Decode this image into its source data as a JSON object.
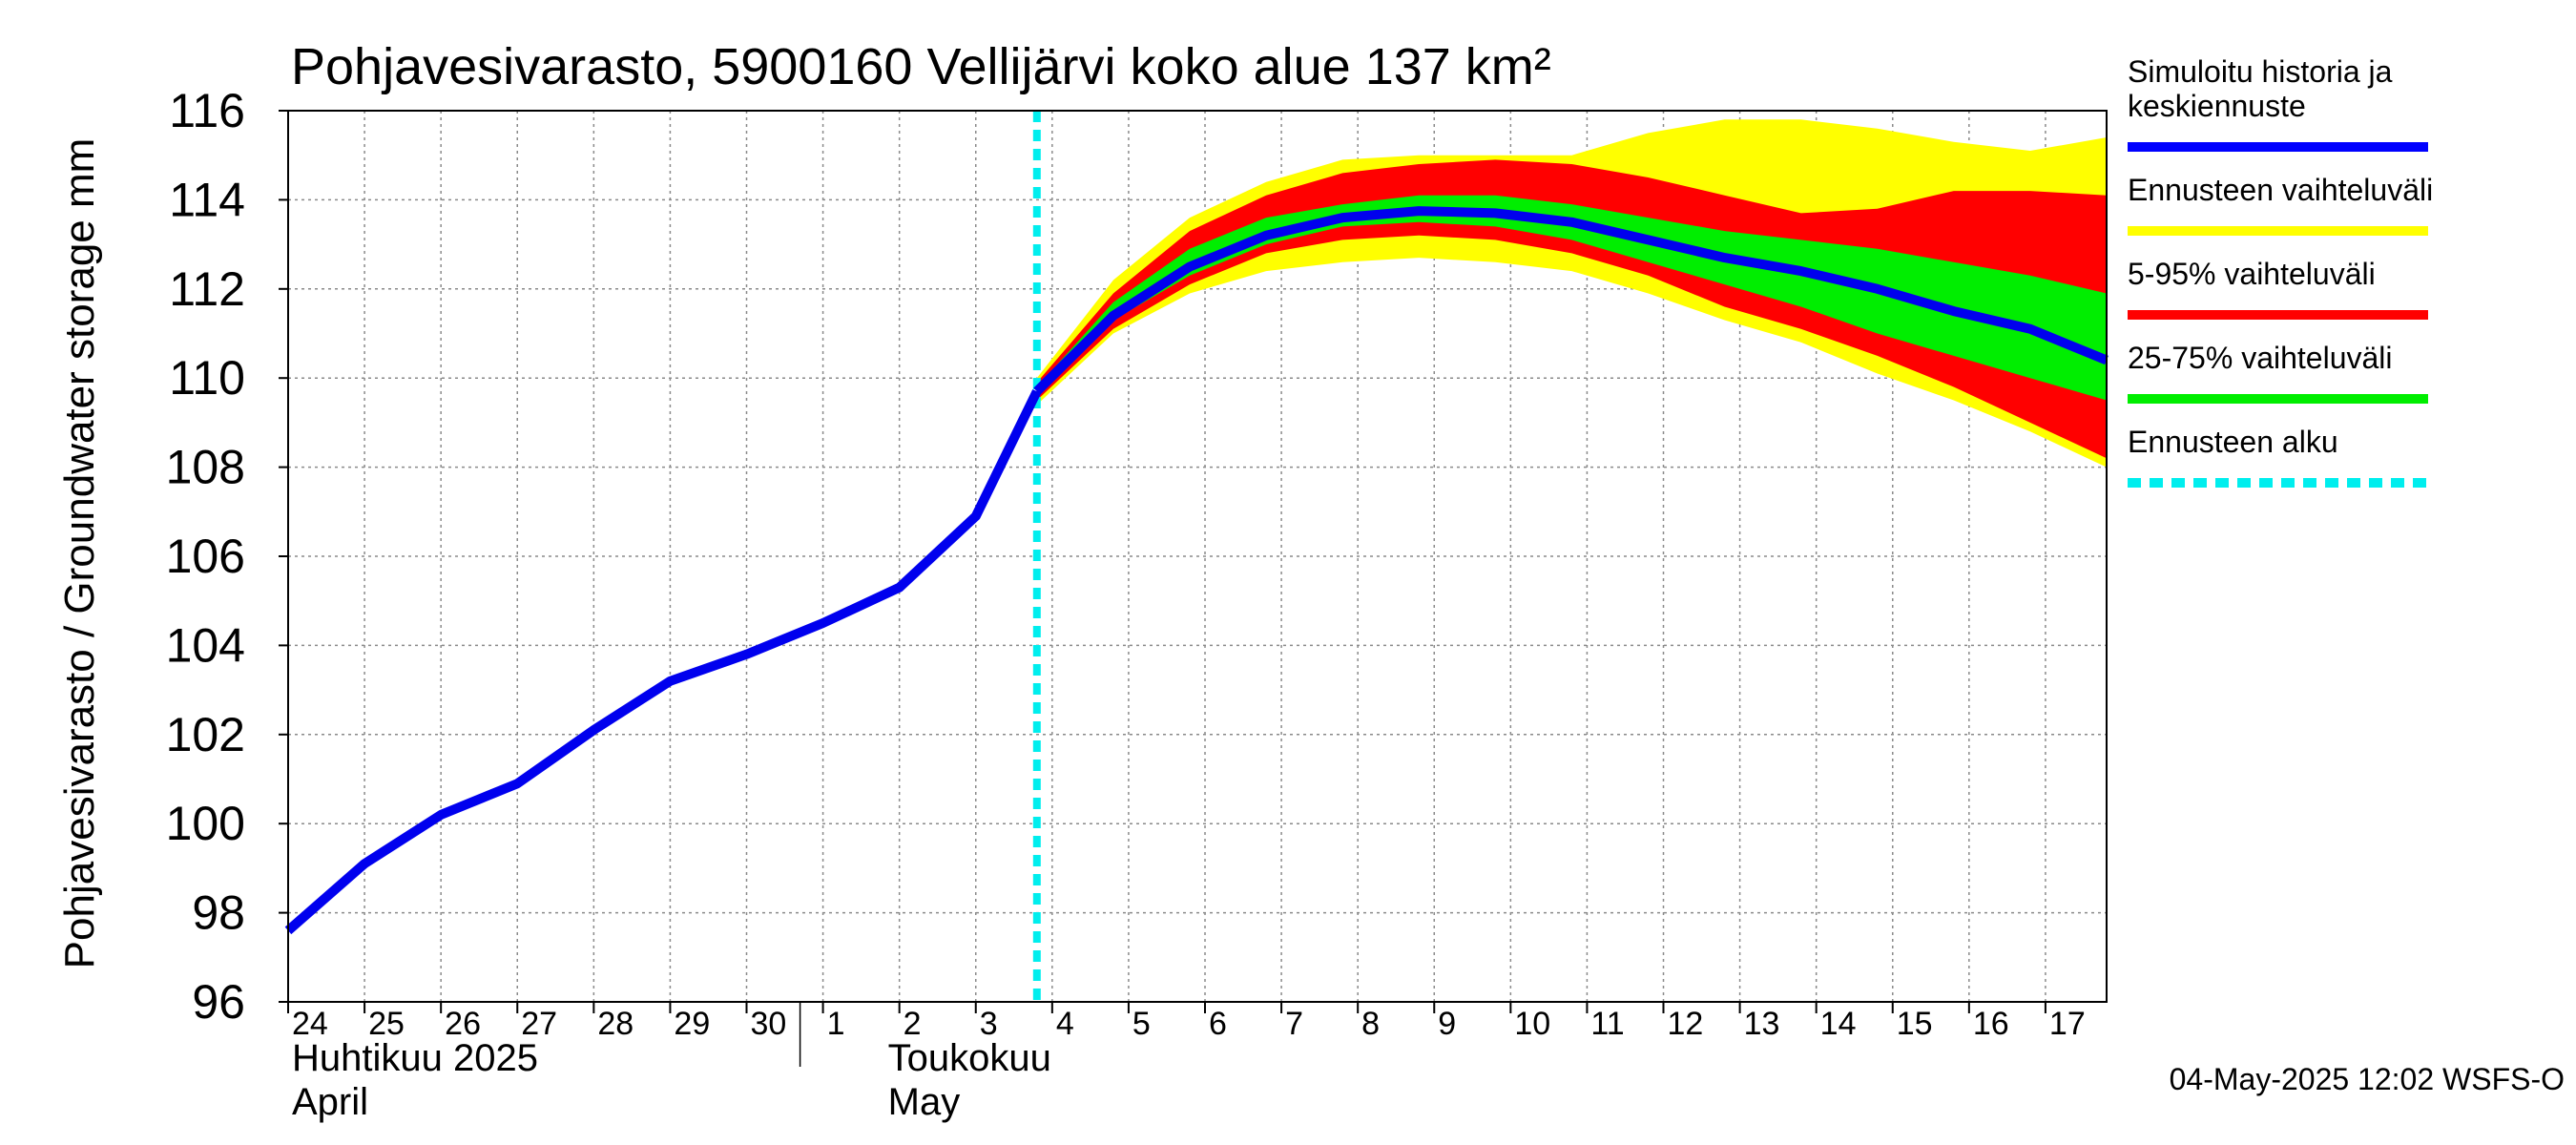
{
  "chart_data": {
    "type": "area",
    "title": "Pohjavesivarasto, 5900160 Vellijärvi koko alue 137 km²",
    "ylabel": "Pohjavesivarasto / Groundwater storage   mm",
    "ylim": [
      96,
      116
    ],
    "yticks": [
      "96",
      "98",
      "100",
      "102",
      "104",
      "106",
      "108",
      "110",
      "112",
      "114",
      "116"
    ],
    "x_start_day": 24,
    "x_end_day": 47.8,
    "x_note": "day index: 24 = 24 April 2025, 31 = 1 May 2025",
    "xtick_labels": [
      {
        "day": 24,
        "label": "24"
      },
      {
        "day": 25,
        "label": "25"
      },
      {
        "day": 26,
        "label": "26"
      },
      {
        "day": 27,
        "label": "27"
      },
      {
        "day": 28,
        "label": "28"
      },
      {
        "day": 29,
        "label": "29"
      },
      {
        "day": 30,
        "label": "30"
      },
      {
        "day": 31,
        "label": "1"
      },
      {
        "day": 32,
        "label": "2"
      },
      {
        "day": 33,
        "label": "3"
      },
      {
        "day": 34,
        "label": "4"
      },
      {
        "day": 35,
        "label": "5"
      },
      {
        "day": 36,
        "label": "6"
      },
      {
        "day": 37,
        "label": "7"
      },
      {
        "day": 38,
        "label": "8"
      },
      {
        "day": 39,
        "label": "9"
      },
      {
        "day": 40,
        "label": "10"
      },
      {
        "day": 41,
        "label": "11"
      },
      {
        "day": 42,
        "label": "12"
      },
      {
        "day": 43,
        "label": "13"
      },
      {
        "day": 44,
        "label": "14"
      },
      {
        "day": 45,
        "label": "15"
      },
      {
        "day": 46,
        "label": "16"
      },
      {
        "day": 47,
        "label": "17"
      }
    ],
    "month_labels": [
      {
        "day": 24,
        "fi": "Huhtikuu  2025",
        "en": "April"
      },
      {
        "day": 31.8,
        "fi": "Toukokuu",
        "en": "May"
      }
    ],
    "month_separator_day": 31,
    "forecast_start_day": 33.8,
    "history": {
      "name": "Simuloitu historia ja keskiennuste",
      "x": [
        24,
        25,
        26,
        27,
        28,
        29,
        30,
        31,
        32,
        33,
        33.8
      ],
      "y": [
        97.6,
        99.1,
        100.2,
        100.9,
        102.1,
        103.2,
        103.8,
        104.5,
        105.3,
        106.9,
        109.7
      ]
    },
    "forecast_x": [
      33.8,
      34.8,
      35.8,
      36.8,
      37.8,
      38.8,
      39.8,
      40.8,
      41.8,
      42.8,
      43.8,
      44.8,
      45.8,
      46.8,
      47.8
    ],
    "median": [
      109.7,
      111.4,
      112.5,
      113.2,
      113.6,
      113.75,
      113.7,
      113.5,
      113.1,
      112.7,
      112.4,
      112.0,
      111.5,
      111.1,
      110.4
    ],
    "band_full": {
      "name": "Ennusteen vaihteluväli",
      "color": "#ffff00",
      "upper": [
        110.0,
        112.2,
        113.6,
        114.4,
        114.9,
        115.0,
        115.0,
        115.0,
        115.5,
        115.8,
        115.8,
        115.6,
        115.3,
        115.1,
        115.4
      ],
      "lower": [
        109.4,
        111.0,
        111.9,
        112.4,
        112.6,
        112.7,
        112.6,
        112.4,
        111.9,
        111.3,
        110.8,
        110.1,
        109.5,
        108.8,
        108.0
      ]
    },
    "band_5_95": {
      "name": "5-95% vaihteluväli",
      "color": "#ff0000",
      "upper": [
        109.9,
        111.9,
        113.3,
        114.1,
        114.6,
        114.8,
        114.9,
        114.8,
        114.5,
        114.1,
        113.7,
        113.8,
        114.2,
        114.2,
        114.1
      ],
      "lower": [
        109.5,
        111.1,
        112.1,
        112.8,
        113.1,
        113.2,
        113.1,
        112.8,
        112.3,
        111.6,
        111.1,
        110.5,
        109.8,
        109.0,
        108.2
      ]
    },
    "band_25_75": {
      "name": "25-75% vaihteluväli",
      "color": "#00ee00",
      "upper": [
        109.8,
        111.7,
        112.9,
        113.6,
        113.9,
        114.1,
        114.1,
        113.9,
        113.6,
        113.3,
        113.1,
        112.9,
        112.6,
        112.3,
        111.9
      ],
      "lower": [
        109.6,
        111.3,
        112.3,
        113.0,
        113.4,
        113.5,
        113.4,
        113.1,
        112.6,
        112.1,
        111.6,
        111.0,
        110.5,
        110.0,
        109.5
      ]
    },
    "legend": [
      {
        "label_lines": [
          "Simuloitu historia ja",
          "keskiennuste"
        ],
        "color": "#0000ff",
        "style": "solid"
      },
      {
        "label_lines": [
          "Ennusteen vaihteluväli"
        ],
        "color": "#ffff00",
        "style": "solid"
      },
      {
        "label_lines": [
          "5-95% vaihteluväli"
        ],
        "color": "#ff0000",
        "style": "solid"
      },
      {
        "label_lines": [
          "25-75% vaihteluväli"
        ],
        "color": "#00ee00",
        "style": "solid"
      },
      {
        "label_lines": [
          "Ennusteen alku"
        ],
        "color": "#00eeee",
        "style": "dashed"
      }
    ],
    "timestamp": "04-May-2025 12:02 WSFS-O",
    "grid": true
  }
}
